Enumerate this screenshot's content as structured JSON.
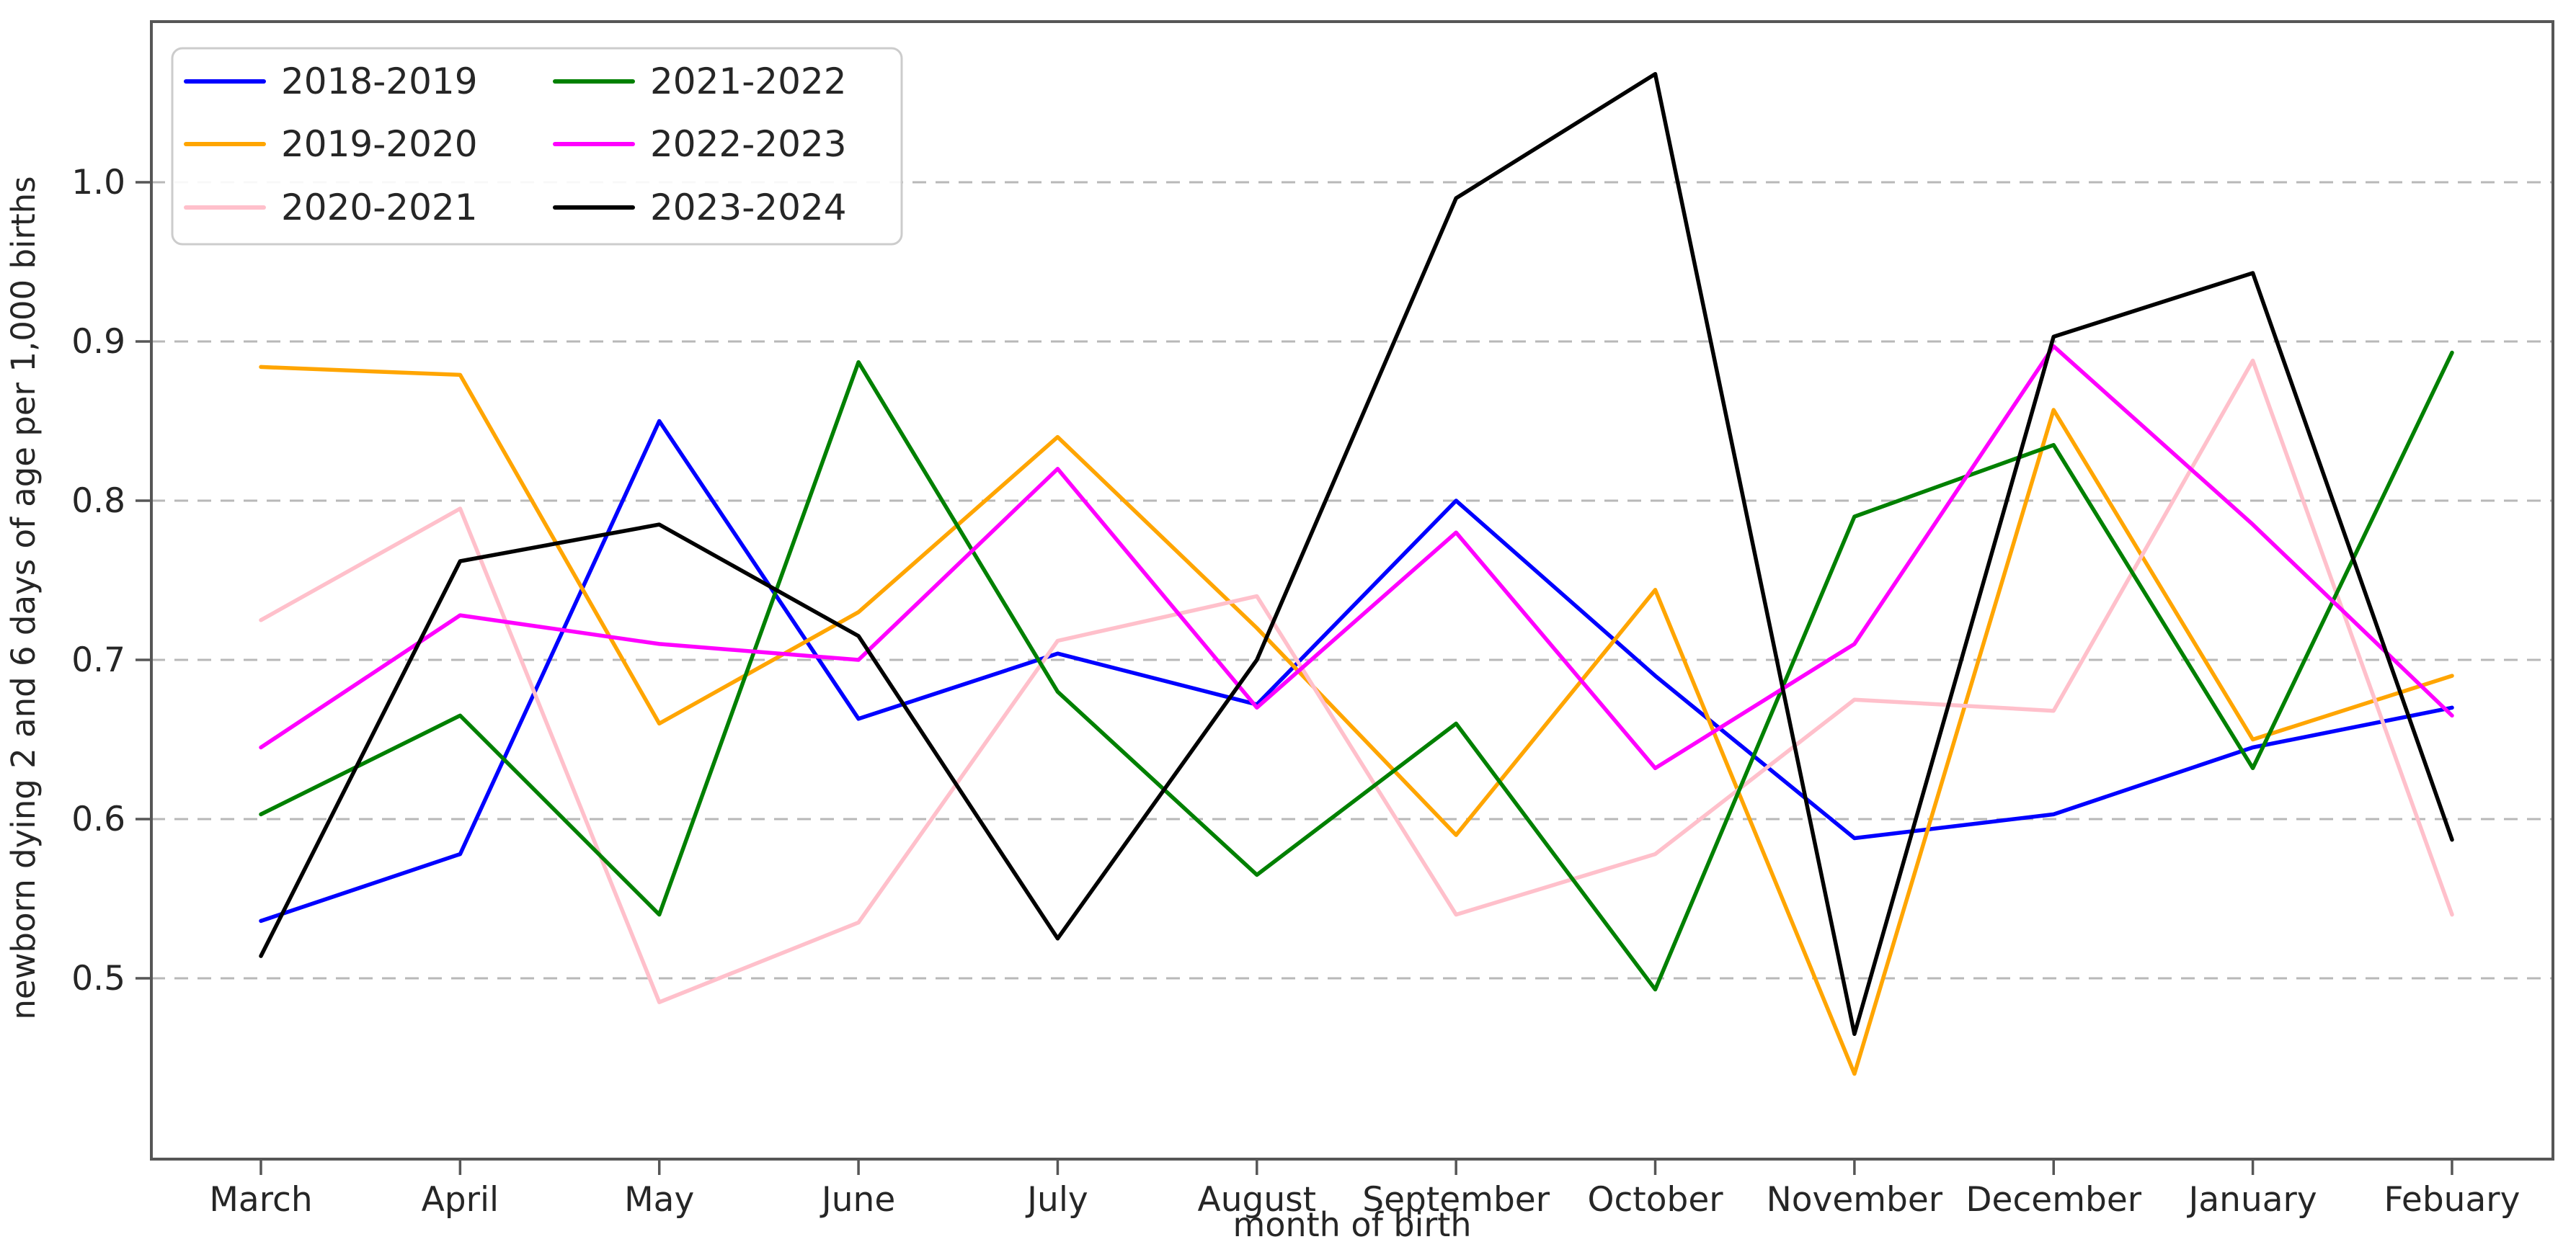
{
  "chart_data": {
    "type": "line",
    "title": "",
    "xlabel": "month of birth",
    "ylabel": "newborn dying 2 and 6 days of age per 1,000 births",
    "categories": [
      "March",
      "April",
      "May",
      "June",
      "July",
      "August",
      "September",
      "October",
      "November",
      "December",
      "January",
      "Febuary"
    ],
    "ytick_labels": [
      "0.5",
      "0.6",
      "0.7",
      "0.8",
      "0.9",
      "1.0"
    ],
    "ytick_values": [
      0.5,
      0.6,
      0.7,
      0.8,
      0.9,
      1.0
    ],
    "ylim": [
      0.386,
      1.101
    ],
    "grid": "horizontal-dashed",
    "legend_position": "upper-left-2-columns",
    "colors": {
      "grid": "#b8b8b8",
      "spine": "#565656",
      "text": "#262626",
      "legend_border": "#cccccc",
      "legend_bg": "#ffffff"
    },
    "series": [
      {
        "name": "2018-2019",
        "color": "#0000ff",
        "values": [
          0.536,
          0.578,
          0.85,
          0.663,
          0.704,
          0.672,
          0.8,
          0.69,
          0.588,
          0.603,
          0.645,
          0.67
        ]
      },
      {
        "name": "2019-2020",
        "color": "#ffa500",
        "values": [
          0.884,
          0.879,
          0.66,
          0.73,
          0.84,
          0.72,
          0.59,
          0.744,
          0.44,
          0.857,
          0.65,
          0.69
        ]
      },
      {
        "name": "2020-2021",
        "color": "#ffc0cb",
        "values": [
          0.725,
          0.795,
          0.485,
          0.535,
          0.712,
          0.74,
          0.54,
          0.578,
          0.675,
          0.668,
          0.888,
          0.54
        ]
      },
      {
        "name": "2021-2022",
        "color": "#008000",
        "values": [
          0.603,
          0.665,
          0.54,
          0.887,
          0.68,
          0.565,
          0.66,
          0.493,
          0.79,
          0.835,
          0.632,
          0.893
        ]
      },
      {
        "name": "2022-2023",
        "color": "#ff00ff",
        "values": [
          0.645,
          0.728,
          0.71,
          0.7,
          0.82,
          0.67,
          0.78,
          0.632,
          0.71,
          0.897,
          0.785,
          0.665
        ]
      },
      {
        "name": "2023-2024",
        "color": "#000000",
        "values": [
          0.514,
          0.762,
          0.785,
          0.715,
          0.525,
          0.7,
          0.99,
          1.068,
          0.465,
          0.903,
          0.943,
          0.587
        ]
      }
    ]
  }
}
